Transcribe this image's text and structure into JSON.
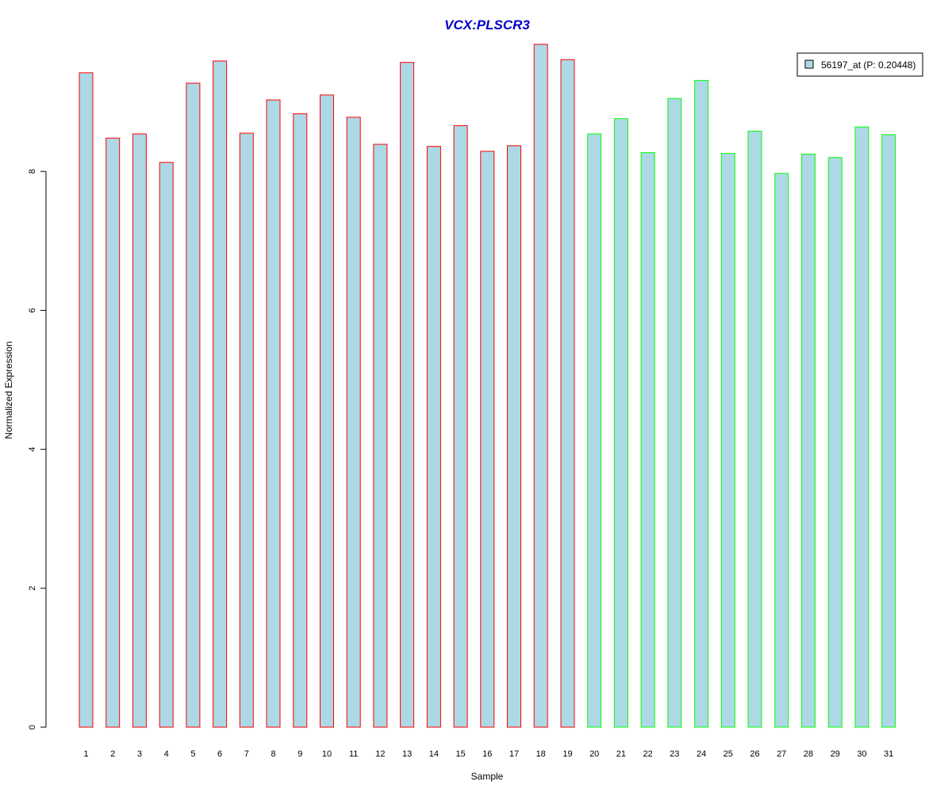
{
  "chart_data": {
    "type": "bar",
    "title": "VCX:PLSCR3",
    "xlabel": "Sample",
    "ylabel": "Normalized Expression",
    "ylim": [
      0,
      9.8
    ],
    "yticks": [
      0,
      2,
      4,
      6,
      8
    ],
    "categories": [
      "1",
      "2",
      "3",
      "4",
      "5",
      "6",
      "7",
      "8",
      "9",
      "10",
      "11",
      "12",
      "13",
      "14",
      "15",
      "16",
      "17",
      "18",
      "19",
      "20",
      "21",
      "22",
      "23",
      "24",
      "25",
      "26",
      "27",
      "28",
      "29",
      "30",
      "31"
    ],
    "values": [
      9.42,
      8.48,
      8.54,
      8.13,
      9.27,
      9.59,
      8.55,
      9.03,
      8.83,
      9.1,
      8.78,
      8.39,
      9.57,
      8.36,
      8.66,
      8.29,
      8.37,
      9.83,
      9.61,
      8.54,
      8.76,
      8.27,
      9.05,
      9.31,
      8.26,
      8.58,
      7.97,
      8.25,
      8.2,
      8.64,
      8.53
    ],
    "groups": [
      "a",
      "a",
      "a",
      "a",
      "a",
      "a",
      "a",
      "a",
      "a",
      "a",
      "a",
      "a",
      "a",
      "a",
      "a",
      "a",
      "a",
      "a",
      "a",
      "b",
      "b",
      "b",
      "b",
      "b",
      "b",
      "b",
      "b",
      "b",
      "b",
      "b",
      "b"
    ],
    "colors": {
      "fill": "#add8e6",
      "border_a": "#ff0000",
      "border_b": "#00ff00",
      "title": "#0000cc"
    },
    "legend": {
      "label": "56197_at (P: 0.20448)",
      "position": "top-right"
    },
    "grid": false
  }
}
